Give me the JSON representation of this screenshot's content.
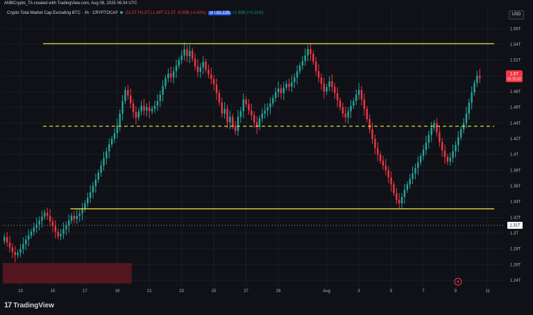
{
  "header": {
    "publisher_text": "AMBCrypto_TA created with TradingView.com, Aug 08, 2025 06:34 UTC"
  },
  "symbol": {
    "name": "Crypto Total Market Cap Excluding BTC",
    "interval": "4h",
    "exchange": "CRYPTOCAP",
    "ohlc": {
      "open": "O1.5T",
      "high": "H1.5T",
      "low": "L1.49T",
      "close": "C1.5T",
      "change": "-6.35B (-0.42%)"
    },
    "volume_label": "Vol 83.22B",
    "extra_value": "+1.65B (+0.11%)"
  },
  "currency": "USD",
  "colors": {
    "background": "#0f1117",
    "grid": "#1b1f2a",
    "bull": "#26a69a",
    "bear": "#f23645",
    "channel": "#e6e03c",
    "price_label": "#f23645",
    "demand_zone": "#6a1a22"
  },
  "icons": {
    "logo": "tradingview-logo-icon",
    "replay": "lightning-icon"
  },
  "footer": {
    "brand": "TradingView"
  },
  "chart_data": {
    "type": "candlestick",
    "title": "Crypto Total Market Cap Excluding BTC",
    "y_axis": {
      "ticks": [
        "1.56T",
        "1.54T",
        "1.52T",
        "1.5T",
        "1.48T",
        "1.46T",
        "1.44T",
        "1.42T",
        "1.4T",
        "1.38T",
        "1.36T",
        "1.34T",
        "1.32T",
        "1.3T",
        "1.28T",
        "1.26T",
        "1.24T"
      ],
      "range": [
        1.233,
        1.57
      ],
      "unit": "T"
    },
    "x_axis": {
      "ticks": [
        {
          "label": "13",
          "day": 13
        },
        {
          "label": "15",
          "day": 15
        },
        {
          "label": "17",
          "day": 17
        },
        {
          "label": "19",
          "day": 19
        },
        {
          "label": "21",
          "day": 21
        },
        {
          "label": "23",
          "day": 23
        },
        {
          "label": "25",
          "day": 25
        },
        {
          "label": "27",
          "day": 27
        },
        {
          "label": "29",
          "day": 29
        },
        {
          "label": "Aug",
          "day": 32
        },
        {
          "label": "3",
          "day": 34
        },
        {
          "label": "5",
          "day": 36
        },
        {
          "label": "7",
          "day": 38
        },
        {
          "label": "9",
          "day": 40
        },
        {
          "label": "11",
          "day": 42
        }
      ],
      "range": [
        11.9,
        43.0
      ],
      "note": "days in July 2025 continuing into August (32 = Aug 1)"
    },
    "last_price": {
      "value": 1.5,
      "label": "1.5T",
      "countdown": "01:25:32"
    },
    "dotted_level": {
      "value": 1.31,
      "label": "1.31T"
    },
    "levels": [
      {
        "name": "range-high",
        "value": 1.541,
        "start_day": 14.4,
        "end_day": 42.4,
        "style": "solid"
      },
      {
        "name": "range-mid",
        "value": 1.436,
        "start_day": 14.4,
        "end_day": 42.4,
        "style": "dashed"
      },
      {
        "name": "range-low",
        "value": 1.331,
        "start_day": 16.1,
        "end_day": 42.4,
        "style": "solid"
      }
    ],
    "zone": {
      "y_range": [
        1.236,
        1.262
      ],
      "start_day": 11.9,
      "end_day": 19.9
    },
    "candles": {
      "start_day": 12.0,
      "step_days": 0.1667,
      "open_first": 1.29,
      "closes": [
        1.295,
        1.288,
        1.282,
        1.276,
        1.272,
        1.275,
        1.28,
        1.286,
        1.292,
        1.297,
        1.302,
        1.307,
        1.311,
        1.316,
        1.321,
        1.326,
        1.322,
        1.315,
        1.309,
        1.302,
        1.296,
        1.299,
        1.305,
        1.31,
        1.316,
        1.322,
        1.318,
        1.322,
        1.325,
        1.331,
        1.338,
        1.345,
        1.352,
        1.36,
        1.368,
        1.377,
        1.386,
        1.395,
        1.404,
        1.413,
        1.42,
        1.427,
        1.437,
        1.452,
        1.468,
        1.482,
        1.475,
        1.465,
        1.454,
        1.447,
        1.455,
        1.462,
        1.456,
        1.46,
        1.455,
        1.458,
        1.462,
        1.468,
        1.476,
        1.487,
        1.497,
        1.503,
        1.498,
        1.506,
        1.513,
        1.52,
        1.526,
        1.534,
        1.525,
        1.532,
        1.522,
        1.512,
        1.505,
        1.511,
        1.518,
        1.508,
        1.502,
        1.496,
        1.489,
        1.478,
        1.466,
        1.452,
        1.458,
        1.441,
        1.448,
        1.436,
        1.43,
        1.448,
        1.455,
        1.47,
        1.464,
        1.456,
        1.45,
        1.441,
        1.435,
        1.446,
        1.452,
        1.456,
        1.46,
        1.465,
        1.472,
        1.479,
        1.484,
        1.478,
        1.485,
        1.49,
        1.486,
        1.492,
        1.498,
        1.506,
        1.513,
        1.519,
        1.526,
        1.534,
        1.528,
        1.518,
        1.506,
        1.498,
        1.49,
        1.48,
        1.486,
        1.493,
        1.486,
        1.478,
        1.469,
        1.46,
        1.452,
        1.447,
        1.455,
        1.462,
        1.468,
        1.476,
        1.482,
        1.47,
        1.458,
        1.445,
        1.432,
        1.42,
        1.408,
        1.4,
        1.392,
        1.386,
        1.38,
        1.371,
        1.362,
        1.351,
        1.342,
        1.338,
        1.346,
        1.355,
        1.362,
        1.369,
        1.376,
        1.383,
        1.39,
        1.398,
        1.406,
        1.415,
        1.425,
        1.434,
        1.44,
        1.428,
        1.416,
        1.405,
        1.397,
        1.391,
        1.396,
        1.404,
        1.412,
        1.422,
        1.432,
        1.44,
        1.452,
        1.466,
        1.479,
        1.491,
        1.5,
        1.497
      ]
    }
  }
}
